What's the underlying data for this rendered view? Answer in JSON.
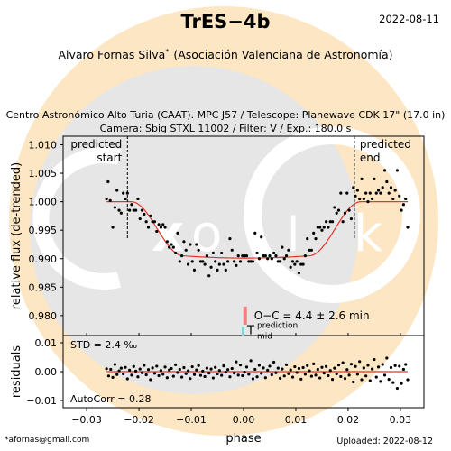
{
  "header": {
    "title": "TrES−4b",
    "date": "2022-08-11",
    "observer": "Alvaro Fornas Silva",
    "observer_mark": "*",
    "affiliation": "(Asociación Valenciana de Astronomía)",
    "setup_line1": "Centro Astronómico Alto Turia (CAAT). MPC J57 / Telescope: Planewave CDK 17\" (17.0 in)",
    "setup_line2": "Camera: Sbig STXL 11002 / Filter: V / Exp.: 180.0 s"
  },
  "footer": {
    "email": "*afornas@gmail.com",
    "uploaded": "Uploaded: 2022-08-12"
  },
  "colors": {
    "points": "#000000",
    "model": "#e8332b",
    "oc_bar": "#f08080",
    "prediction_bar": "#7fd3d3",
    "watermark_orange": "#fde6c4",
    "watermark_grey": "#e6e6e6"
  },
  "chart_data": {
    "type": "scatter",
    "xlabel": "phase",
    "xlim": [
      -0.0345,
      0.0345
    ],
    "x_ticks": [
      -0.03,
      -0.02,
      -0.01,
      0.0,
      0.01,
      0.02,
      0.03
    ],
    "x_tick_labels": [
      "−0.03",
      "−0.02",
      "−0.01",
      "0.00",
      "0.01",
      "0.02",
      "0.03"
    ],
    "main": {
      "ylabel": "relative flux (de-trended)",
      "ylim": [
        0.9765,
        1.0115
      ],
      "y_ticks": [
        0.98,
        0.985,
        0.99,
        0.995,
        1.0,
        1.005,
        1.01
      ],
      "y_tick_labels": [
        "0.980",
        "0.985",
        "0.990",
        "0.995",
        "1.000",
        "1.005",
        "1.010"
      ],
      "predicted_start": -0.0222,
      "predicted_end": 0.0212,
      "predicted_start_label": [
        "predicted",
        "start"
      ],
      "predicted_end_label": [
        "predicted",
        "end"
      ],
      "oc_text": "O−C = 4.4 ± 2.6 min",
      "oc_offset": 0.0003,
      "prediction_label": "T",
      "prediction_sup": "prediction",
      "prediction_sub": "mid",
      "model": {
        "depth": 0.0095,
        "t1": -0.0215,
        "t2": -0.0115,
        "t3": 0.0125,
        "t4": 0.0225
      },
      "points": [
        [
          -0.0262,
          1.0005
        ],
        [
          -0.0259,
          1.0035
        ],
        [
          -0.0255,
          1.0002
        ],
        [
          -0.025,
          0.9955
        ],
        [
          -0.0246,
          0.999
        ],
        [
          -0.0242,
          1.002
        ],
        [
          -0.0238,
          0.9985
        ],
        [
          -0.0234,
          0.998
        ],
        [
          -0.023,
          1.0015
        ],
        [
          -0.0226,
          1.0005
        ],
        [
          -0.0222,
          1.0015
        ],
        [
          -0.0218,
          0.9985
        ],
        [
          -0.0214,
          0.9995
        ],
        [
          -0.021,
          0.9985
        ],
        [
          -0.0206,
          0.9985
        ],
        [
          -0.0202,
          1.0005
        ],
        [
          -0.0198,
          0.997
        ],
        [
          -0.0194,
          0.9985
        ],
        [
          -0.019,
          0.9978
        ],
        [
          -0.0186,
          0.9965
        ],
        [
          -0.0182,
          0.9955
        ],
        [
          -0.0178,
          0.9975
        ],
        [
          -0.0174,
          0.9965
        ],
        [
          -0.017,
          0.9965
        ],
        [
          -0.0166,
          0.9948
        ],
        [
          -0.0162,
          0.996
        ],
        [
          -0.0158,
          0.9955
        ],
        [
          -0.0154,
          0.996
        ],
        [
          -0.015,
          0.9955
        ],
        [
          -0.0146,
          0.993
        ],
        [
          -0.0142,
          0.992
        ],
        [
          -0.0138,
          0.9925
        ],
        [
          -0.0134,
          0.992
        ],
        [
          -0.013,
          0.991
        ],
        [
          -0.0126,
          0.9945
        ],
        [
          -0.0122,
          0.9895
        ],
        [
          -0.0118,
          0.9905
        ],
        [
          -0.0114,
          0.993
        ],
        [
          -0.011,
          0.9915
        ],
        [
          -0.0106,
          0.989
        ],
        [
          -0.0102,
          0.9925
        ],
        [
          -0.0098,
          0.9895
        ],
        [
          -0.0094,
          0.988
        ],
        [
          -0.009,
          0.9925
        ],
        [
          -0.0086,
          0.9915
        ],
        [
          -0.0082,
          0.9895
        ],
        [
          -0.0078,
          0.9895
        ],
        [
          -0.0074,
          0.989
        ],
        [
          -0.007,
          0.9905
        ],
        [
          -0.0066,
          0.987
        ],
        [
          -0.0062,
          0.9885
        ],
        [
          -0.0058,
          0.991
        ],
        [
          -0.0054,
          0.9895
        ],
        [
          -0.005,
          0.988
        ],
        [
          -0.0046,
          0.989
        ],
        [
          -0.0042,
          0.991
        ],
        [
          -0.0038,
          0.989
        ],
        [
          -0.0034,
          0.988
        ],
        [
          -0.003,
          0.9895
        ],
        [
          -0.0026,
          0.9935
        ],
        [
          -0.0022,
          0.9915
        ],
        [
          -0.0018,
          0.9895
        ],
        [
          -0.0014,
          0.9888
        ],
        [
          -0.001,
          0.9905
        ],
        [
          -0.0006,
          0.9895
        ],
        [
          -0.0002,
          0.9905
        ],
        [
          0.0002,
          0.9905
        ],
        [
          0.0006,
          0.9905
        ],
        [
          0.001,
          0.9895
        ],
        [
          0.0014,
          0.9895
        ],
        [
          0.0018,
          0.9895
        ],
        [
          0.0022,
          0.9945
        ],
        [
          0.0026,
          0.991
        ],
        [
          0.003,
          0.99
        ],
        [
          0.0034,
          0.9938
        ],
        [
          0.0038,
          0.9905
        ],
        [
          0.0042,
          0.9905
        ],
        [
          0.0046,
          0.99
        ],
        [
          0.005,
          0.9905
        ],
        [
          0.0054,
          0.99
        ],
        [
          0.0058,
          0.991
        ],
        [
          0.0062,
          0.9905
        ],
        [
          0.0066,
          0.9895
        ],
        [
          0.007,
          0.9895
        ],
        [
          0.0074,
          0.992
        ],
        [
          0.0078,
          0.99
        ],
        [
          0.0082,
          0.9905
        ],
        [
          0.0086,
          0.9915
        ],
        [
          0.009,
          0.9885
        ],
        [
          0.0094,
          0.9895
        ],
        [
          0.0098,
          0.989
        ],
        [
          0.0102,
          0.9895
        ],
        [
          0.0106,
          0.9875
        ],
        [
          0.011,
          0.989
        ],
        [
          0.0114,
          0.989
        ],
        [
          0.0118,
          0.9905
        ],
        [
          0.0122,
          0.9935
        ],
        [
          0.0126,
          0.9915
        ],
        [
          0.013,
          0.9915
        ],
        [
          0.0134,
          0.9945
        ],
        [
          0.0138,
          0.9935
        ],
        [
          0.0142,
          0.9955
        ],
        [
          0.0146,
          0.9955
        ],
        [
          0.015,
          0.995
        ],
        [
          0.0154,
          0.9955
        ],
        [
          0.0158,
          0.9965
        ],
        [
          0.0162,
          0.9955
        ],
        [
          0.0166,
          0.9965
        ],
        [
          0.017,
          0.9965
        ],
        [
          0.0174,
          0.999
        ],
        [
          0.0178,
          0.998
        ],
        [
          0.0182,
          0.9985
        ],
        [
          0.0186,
          1.0015
        ],
        [
          0.019,
          0.9965
        ],
        [
          0.0194,
          0.998
        ],
        [
          0.0198,
          1.0015
        ],
        [
          0.0202,
          0.9985
        ],
        [
          0.0206,
          0.997
        ],
        [
          0.021,
          1.0025
        ],
        [
          0.0214,
          1.001
        ],
        [
          0.0218,
          1.002
        ],
        [
          0.0222,
          1.0005
        ],
        [
          0.0226,
          1.004
        ],
        [
          0.023,
          1.0005
        ],
        [
          0.0234,
          1.0015
        ],
        [
          0.0238,
          1.0
        ],
        [
          0.0242,
          1.0015
        ],
        [
          0.0246,
          1.0005
        ],
        [
          0.025,
          1.004
        ],
        [
          0.0254,
          1.0015
        ],
        [
          0.0258,
          1.002
        ],
        [
          0.0262,
          1.0015
        ],
        [
          0.0266,
          1.0025
        ],
        [
          0.027,
          1.0055
        ],
        [
          0.0274,
          1.0035
        ],
        [
          0.0278,
          1.0015
        ],
        [
          0.0282,
          1.0025
        ],
        [
          0.0286,
          1.0005
        ],
        [
          0.029,
          1.002
        ],
        [
          0.0294,
          1.0055
        ],
        [
          0.0298,
          1.001
        ],
        [
          0.0302,
          0.9985
        ],
        [
          0.0306,
          0.9995
        ],
        [
          0.031,
          1.0005
        ],
        [
          0.0314,
          0.9955
        ]
      ]
    },
    "residuals": {
      "ylabel": "residuals",
      "ylim": [
        -0.0125,
        0.0125
      ],
      "y_ticks": [
        -0.01,
        0.0,
        0.01
      ],
      "y_tick_labels": [
        "−0.01",
        "0.00",
        "0.01"
      ],
      "std_text": "STD = 2.4 ‰",
      "autocorr_text": "AutoCorr = 0.28",
      "points": [
        [
          -0.0262,
          0.001
        ],
        [
          -0.0258,
          -0.0015
        ],
        [
          -0.0254,
          0.0008
        ],
        [
          -0.025,
          -0.002
        ],
        [
          -0.0246,
          0.0025
        ],
        [
          -0.0242,
          -0.001
        ],
        [
          -0.0238,
          0.0003
        ],
        [
          -0.0234,
          0.0012
        ],
        [
          -0.023,
          -0.0008
        ],
        [
          -0.0226,
          0.0015
        ],
        [
          -0.0222,
          -0.0025
        ],
        [
          -0.0218,
          0.0005
        ],
        [
          -0.0214,
          -0.0012
        ],
        [
          -0.021,
          0.0018
        ],
        [
          -0.0206,
          0.0002
        ],
        [
          -0.0202,
          -0.0018
        ],
        [
          -0.0198,
          0.0009
        ],
        [
          -0.0194,
          -0.0004
        ],
        [
          -0.019,
          0.0022
        ],
        [
          -0.0186,
          -0.0011
        ],
        [
          -0.0182,
          0.0007
        ],
        [
          -0.0178,
          -0.0028
        ],
        [
          -0.0174,
          0.0013
        ],
        [
          -0.017,
          -0.0006
        ],
        [
          -0.0166,
          0.0019
        ],
        [
          -0.0162,
          -0.0014
        ],
        [
          -0.0158,
          0.0004
        ],
        [
          -0.0154,
          -0.0009
        ],
        [
          -0.015,
          0.0016
        ],
        [
          -0.0146,
          -0.0021
        ],
        [
          -0.0142,
          0.0006
        ],
        [
          -0.0138,
          0.0011
        ],
        [
          -0.0134,
          -0.0016
        ],
        [
          -0.013,
          0.0024
        ],
        [
          -0.0126,
          -0.0003
        ],
        [
          -0.0122,
          0.0008
        ],
        [
          -0.0118,
          -0.0019
        ],
        [
          -0.0114,
          0.0014
        ],
        [
          -0.011,
          -0.0007
        ],
        [
          -0.0106,
          0.0003
        ],
        [
          -0.0102,
          -0.0024
        ],
        [
          -0.0098,
          0.0017
        ],
        [
          -0.0094,
          -0.001
        ],
        [
          -0.009,
          0.0006
        ],
        [
          -0.0086,
          0.0021
        ],
        [
          -0.0082,
          -0.0013
        ],
        [
          -0.0078,
          0.0002
        ],
        [
          -0.0074,
          -0.0017
        ],
        [
          -0.007,
          0.0012
        ],
        [
          -0.0066,
          -0.0005
        ],
        [
          -0.0062,
          0.0009
        ],
        [
          -0.0058,
          -0.0022
        ],
        [
          -0.0054,
          0.0015
        ],
        [
          -0.005,
          -0.0008
        ],
        [
          -0.0046,
          0.0004
        ],
        [
          -0.0042,
          -0.0013
        ],
        [
          -0.0038,
          0.002
        ],
        [
          -0.0034,
          -0.0002
        ],
        [
          -0.003,
          0.0007
        ],
        [
          -0.0026,
          -0.0018
        ],
        [
          -0.0022,
          0.0011
        ],
        [
          -0.0018,
          -0.0005
        ],
        [
          -0.0014,
          0.0034
        ],
        [
          -0.001,
          -0.0012
        ],
        [
          -0.0006,
          0.0023
        ],
        [
          -0.0002,
          -0.0014
        ],
        [
          0.0002,
          -0.0002
        ],
        [
          0.0006,
          0.0016
        ],
        [
          0.001,
          -0.0009
        ],
        [
          0.0014,
          0.0038
        ],
        [
          0.0018,
          -0.0025
        ],
        [
          0.0022,
          0.0008
        ],
        [
          0.0026,
          -0.0018
        ],
        [
          0.003,
          0.0022
        ],
        [
          0.0034,
          -0.0006
        ],
        [
          0.0038,
          0.0013
        ],
        [
          0.0042,
          -0.0021
        ],
        [
          0.0046,
          0.0005
        ],
        [
          0.005,
          0.0019
        ],
        [
          0.0054,
          -0.0011
        ],
        [
          0.0058,
          0.0033
        ],
        [
          0.0062,
          -0.0004
        ],
        [
          0.0066,
          0.0012
        ],
        [
          0.007,
          -0.0023
        ],
        [
          0.0074,
          0.0009
        ],
        [
          0.0078,
          -0.0015
        ],
        [
          0.0082,
          0.0024
        ],
        [
          0.0086,
          -0.0007
        ],
        [
          0.009,
          0.0006
        ],
        [
          0.0094,
          -0.0019
        ],
        [
          0.0098,
          0.0017
        ],
        [
          0.0102,
          -0.0003
        ],
        [
          0.0106,
          0.0011
        ],
        [
          0.011,
          -0.0026
        ],
        [
          0.0114,
          0.0014
        ],
        [
          0.0118,
          -0.0009
        ],
        [
          0.0122,
          0.0021
        ],
        [
          0.0126,
          0.0003
        ],
        [
          0.013,
          -0.0016
        ],
        [
          0.0134,
          0.0027
        ],
        [
          0.0138,
          -0.0012
        ],
        [
          0.0142,
          0.0008
        ],
        [
          0.0146,
          -0.0022
        ],
        [
          0.015,
          0.0015
        ],
        [
          0.0154,
          -0.0005
        ],
        [
          0.0158,
          0.0018
        ],
        [
          0.0162,
          -0.0014
        ],
        [
          0.0166,
          0.0004
        ],
        [
          0.017,
          -0.0027
        ],
        [
          0.0174,
          0.0012
        ],
        [
          0.0178,
          -0.0008
        ],
        [
          0.0182,
          0.0023
        ],
        [
          0.0186,
          -0.0017
        ],
        [
          0.019,
          0.0031
        ],
        [
          0.0194,
          -0.0024
        ],
        [
          0.0198,
          0.0007
        ],
        [
          0.0202,
          -0.0012
        ],
        [
          0.0206,
          0.0026
        ],
        [
          0.021,
          -0.0036
        ],
        [
          0.0214,
          0.0018
        ],
        [
          0.0218,
          -0.0009
        ],
        [
          0.0222,
          0.0035
        ],
        [
          0.0226,
          -0.0028
        ],
        [
          0.023,
          0.0013
        ],
        [
          0.0234,
          -0.0015
        ],
        [
          0.0238,
          0.0022
        ],
        [
          0.0242,
          -0.0031
        ],
        [
          0.0246,
          0.0009
        ],
        [
          0.025,
          0.0042
        ],
        [
          0.0254,
          -0.0019
        ],
        [
          0.0258,
          0.0016
        ],
        [
          0.0262,
          -0.0034
        ],
        [
          0.0266,
          0.0025
        ],
        [
          0.027,
          -0.0012
        ],
        [
          0.0274,
          0.0047
        ],
        [
          0.0278,
          -0.0027
        ],
        [
          0.0282,
          0.0014
        ],
        [
          0.0286,
          -0.0038
        ],
        [
          0.029,
          0.0021
        ],
        [
          0.0294,
          -0.0058
        ],
        [
          0.0298,
          0.0019
        ],
        [
          0.0302,
          -0.0041
        ],
        [
          0.0306,
          0.0008
        ],
        [
          0.031,
          0.0025
        ],
        [
          0.0314,
          -0.0028
        ]
      ]
    }
  }
}
